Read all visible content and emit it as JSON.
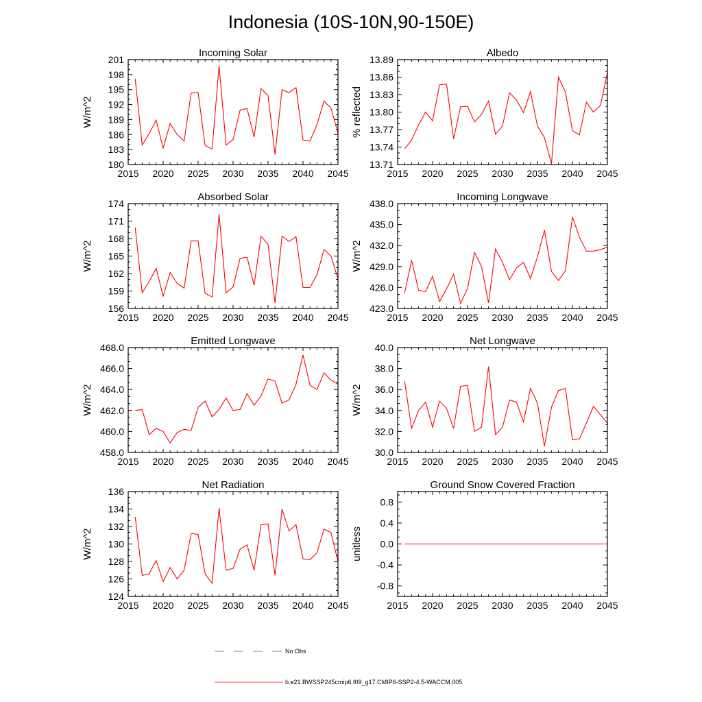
{
  "figure": {
    "title": "Indonesia (10S-10N,90-150E)",
    "colors": {
      "model": "#ff0000",
      "obs": "#4a5bd4",
      "axis": "#000000"
    },
    "legend": {
      "obs_label": "No Obs",
      "model_label": "b.e21.BWSSP245cmip6.f09_g17.CMIP6-SSP2-4.5-WACCM.005"
    }
  },
  "chart_data": [
    {
      "type": "line",
      "title": "Incoming Solar",
      "ylabel": "W/m^2",
      "xlim": [
        2015,
        2045
      ],
      "xticks": [
        2015,
        2020,
        2025,
        2030,
        2035,
        2040,
        2045
      ],
      "ylim": [
        180,
        201
      ],
      "yticks": [
        180,
        183,
        186,
        189,
        192,
        195,
        198,
        201
      ],
      "ytick_labels": [
        "180",
        "183",
        "186",
        "189",
        "192",
        "195",
        "198",
        "201"
      ],
      "x": [
        2016,
        2017,
        2018,
        2019,
        2020,
        2021,
        2022,
        2023,
        2024,
        2025,
        2026,
        2027,
        2028,
        2029,
        2030,
        2031,
        2032,
        2033,
        2034,
        2035,
        2036,
        2037,
        2038,
        2039,
        2040,
        2041,
        2042,
        2043,
        2044,
        2045
      ],
      "series": [
        {
          "name": "b.e21.BWSSP245cmip6.f09_g17.CMIP6-SSP2-4.5-WACCM.005",
          "values": [
            197.2,
            183.9,
            186.2,
            188.9,
            183.3,
            188.2,
            186.0,
            184.7,
            194.3,
            194.4,
            183.8,
            183.1,
            199.8,
            183.9,
            185.0,
            190.9,
            191.2,
            185.5,
            195.2,
            193.8,
            182.0,
            195.0,
            194.4,
            195.4,
            184.9,
            184.7,
            188.0,
            192.7,
            191.3,
            186.3
          ]
        }
      ]
    },
    {
      "type": "line",
      "title": "Albedo",
      "ylabel": "% reflected",
      "xlim": [
        2015,
        2045
      ],
      "xticks": [
        2015,
        2020,
        2025,
        2030,
        2035,
        2040,
        2045
      ],
      "ylim": [
        13.71,
        13.89
      ],
      "yticks": [
        13.71,
        13.74,
        13.77,
        13.8,
        13.83,
        13.86,
        13.89
      ],
      "ytick_labels": [
        "13.71",
        "13.74",
        "13.77",
        "13.80",
        "13.83",
        "13.86",
        "13.89"
      ],
      "x": [
        2016,
        2017,
        2018,
        2019,
        2020,
        2021,
        2022,
        2023,
        2024,
        2025,
        2026,
        2027,
        2028,
        2029,
        2030,
        2031,
        2032,
        2033,
        2034,
        2035,
        2036,
        2037,
        2038,
        2039,
        2040,
        2041,
        2042,
        2043,
        2044,
        2045
      ],
      "series": [
        {
          "name": "b.e21.BWSSP245cmip6.f09_g17.CMIP6-SSP2-4.5-WACCM.005",
          "values": [
            13.737,
            13.752,
            13.778,
            13.8,
            13.785,
            13.847,
            13.848,
            13.754,
            13.809,
            13.81,
            13.783,
            13.796,
            13.819,
            13.762,
            13.776,
            13.833,
            13.821,
            13.799,
            13.835,
            13.776,
            13.756,
            13.711,
            13.86,
            13.834,
            13.768,
            13.761,
            13.817,
            13.8,
            13.811,
            13.868
          ]
        }
      ]
    },
    {
      "type": "line",
      "title": "Absorbed Solar",
      "ylabel": "W/m^2",
      "xlim": [
        2015,
        2045
      ],
      "xticks": [
        2015,
        2020,
        2025,
        2030,
        2035,
        2040,
        2045
      ],
      "ylim": [
        156,
        174
      ],
      "yticks": [
        156,
        159,
        162,
        165,
        168,
        171,
        174
      ],
      "ytick_labels": [
        "156",
        "159",
        "162",
        "165",
        "168",
        "171",
        "174"
      ],
      "x": [
        2016,
        2017,
        2018,
        2019,
        2020,
        2021,
        2022,
        2023,
        2024,
        2025,
        2026,
        2027,
        2028,
        2029,
        2030,
        2031,
        2032,
        2033,
        2034,
        2035,
        2036,
        2037,
        2038,
        2039,
        2040,
        2041,
        2042,
        2043,
        2044,
        2045
      ],
      "series": [
        {
          "name": "b.e21.BWSSP245cmip6.f09_g17.CMIP6-SSP2-4.5-WACCM.005",
          "values": [
            169.9,
            158.7,
            160.6,
            162.9,
            158.1,
            162.2,
            160.3,
            159.5,
            167.6,
            167.6,
            158.6,
            158.0,
            172.2,
            158.7,
            159.7,
            164.6,
            164.8,
            160.0,
            168.4,
            167.0,
            156.9,
            168.4,
            167.5,
            168.3,
            159.6,
            159.6,
            161.8,
            166.1,
            165.0,
            161.1
          ]
        }
      ]
    },
    {
      "type": "line",
      "title": "Incoming Longwave",
      "ylabel": "W/m^2",
      "xlim": [
        2015,
        2045
      ],
      "xticks": [
        2015,
        2020,
        2025,
        2030,
        2035,
        2040,
        2045
      ],
      "ylim": [
        423,
        438
      ],
      "yticks": [
        423,
        426,
        429,
        432,
        435,
        438
      ],
      "ytick_labels": [
        "423.0",
        "426.0",
        "429.0",
        "432.0",
        "435.0",
        "438.0"
      ],
      "x": [
        2016,
        2017,
        2018,
        2019,
        2020,
        2021,
        2022,
        2023,
        2024,
        2025,
        2026,
        2027,
        2028,
        2029,
        2030,
        2031,
        2032,
        2033,
        2034,
        2035,
        2036,
        2037,
        2038,
        2039,
        2040,
        2041,
        2042,
        2043,
        2044,
        2045
      ],
      "series": [
        {
          "name": "b.e21.BWSSP245cmip6.f09_g17.CMIP6-SSP2-4.5-WACCM.005",
          "values": [
            425.2,
            429.9,
            425.6,
            425.4,
            427.6,
            424.0,
            425.8,
            427.9,
            423.7,
            425.9,
            431.0,
            429.0,
            423.8,
            431.5,
            429.6,
            427.1,
            428.8,
            429.6,
            427.3,
            430.4,
            434.2,
            428.3,
            427.0,
            428.4,
            436.1,
            433.2,
            431.2,
            431.2,
            431.4,
            431.8
          ]
        }
      ]
    },
    {
      "type": "line",
      "title": "Emitted Longwave",
      "ylabel": "W/m^2",
      "xlim": [
        2015,
        2045
      ],
      "xticks": [
        2015,
        2020,
        2025,
        2030,
        2035,
        2040,
        2045
      ],
      "ylim": [
        458,
        468
      ],
      "yticks": [
        458,
        460,
        462,
        464,
        466,
        468
      ],
      "ytick_labels": [
        "458.0",
        "460.0",
        "462.0",
        "464.0",
        "466.0",
        "468.0"
      ],
      "x": [
        2016,
        2017,
        2018,
        2019,
        2020,
        2021,
        2022,
        2023,
        2024,
        2025,
        2026,
        2027,
        2028,
        2029,
        2030,
        2031,
        2032,
        2033,
        2034,
        2035,
        2036,
        2037,
        2038,
        2039,
        2040,
        2041,
        2042,
        2043,
        2044,
        2045
      ],
      "series": [
        {
          "name": "b.e21.BWSSP245cmip6.f09_g17.CMIP6-SSP2-4.5-WACCM.005",
          "values": [
            462.0,
            462.1,
            459.7,
            460.3,
            460.0,
            458.9,
            459.9,
            460.2,
            460.1,
            462.3,
            462.9,
            461.4,
            462.1,
            463.2,
            462.0,
            462.1,
            463.6,
            462.5,
            463.4,
            465.0,
            464.8,
            462.7,
            463.0,
            464.5,
            467.3,
            464.4,
            464.0,
            465.6,
            464.9,
            464.5
          ]
        }
      ]
    },
    {
      "type": "line",
      "title": "Net Longwave",
      "ylabel": "W/m^2",
      "xlim": [
        2015,
        2045
      ],
      "xticks": [
        2015,
        2020,
        2025,
        2030,
        2035,
        2040,
        2045
      ],
      "ylim": [
        30,
        40
      ],
      "yticks": [
        30,
        32,
        34,
        36,
        38,
        40
      ],
      "ytick_labels": [
        "30.0",
        "32.0",
        "34.0",
        "36.0",
        "38.0",
        "40.0"
      ],
      "x": [
        2016,
        2017,
        2018,
        2019,
        2020,
        2021,
        2022,
        2023,
        2024,
        2025,
        2026,
        2027,
        2028,
        2029,
        2030,
        2031,
        2032,
        2033,
        2034,
        2035,
        2036,
        2037,
        2038,
        2039,
        2040,
        2041,
        2042,
        2043,
        2044,
        2045
      ],
      "series": [
        {
          "name": "b.e21.BWSSP245cmip6.f09_g17.CMIP6-SSP2-4.5-WACCM.005",
          "values": [
            36.8,
            32.3,
            34.0,
            34.8,
            32.4,
            34.9,
            34.2,
            32.3,
            36.3,
            36.4,
            32.0,
            32.4,
            38.2,
            31.7,
            32.4,
            35.0,
            34.8,
            32.9,
            36.1,
            34.7,
            30.6,
            34.3,
            35.9,
            36.1,
            31.2,
            31.3,
            32.8,
            34.4,
            33.6,
            32.8
          ]
        }
      ]
    },
    {
      "type": "line",
      "title": "Net Radiation",
      "ylabel": "W/m^2",
      "xlim": [
        2015,
        2045
      ],
      "xticks": [
        2015,
        2020,
        2025,
        2030,
        2035,
        2040,
        2045
      ],
      "ylim": [
        124,
        136
      ],
      "yticks": [
        124,
        126,
        128,
        130,
        132,
        134,
        136
      ],
      "ytick_labels": [
        "124",
        "126",
        "128",
        "130",
        "132",
        "134",
        "136"
      ],
      "x": [
        2016,
        2017,
        2018,
        2019,
        2020,
        2021,
        2022,
        2023,
        2024,
        2025,
        2026,
        2027,
        2028,
        2029,
        2030,
        2031,
        2032,
        2033,
        2034,
        2035,
        2036,
        2037,
        2038,
        2039,
        2040,
        2041,
        2042,
        2043,
        2044,
        2045
      ],
      "series": [
        {
          "name": "b.e21.BWSSP245cmip6.f09_g17.CMIP6-SSP2-4.5-WACCM.005",
          "values": [
            133.1,
            126.4,
            126.6,
            128.1,
            125.7,
            127.3,
            126.0,
            127.0,
            131.2,
            131.1,
            126.6,
            125.5,
            134.1,
            127.0,
            127.2,
            129.4,
            129.9,
            127.0,
            132.2,
            132.3,
            126.4,
            134.0,
            131.5,
            132.2,
            128.3,
            128.2,
            129.0,
            131.7,
            131.3,
            128.0
          ]
        }
      ]
    },
    {
      "type": "line",
      "title": "Ground Snow Covered Fraction",
      "ylabel": "unitless",
      "xlim": [
        2015,
        2045
      ],
      "xticks": [
        2015,
        2020,
        2025,
        2030,
        2035,
        2040,
        2045
      ],
      "ylim": [
        -1,
        1
      ],
      "yticks": [
        -0.8,
        -0.4,
        0.0,
        0.4,
        0.8
      ],
      "ytick_labels": [
        "-0.8",
        "-0.4",
        "0.0",
        "0.4",
        "0.8"
      ],
      "x": [
        2016,
        2017,
        2018,
        2019,
        2020,
        2021,
        2022,
        2023,
        2024,
        2025,
        2026,
        2027,
        2028,
        2029,
        2030,
        2031,
        2032,
        2033,
        2034,
        2035,
        2036,
        2037,
        2038,
        2039,
        2040,
        2041,
        2042,
        2043,
        2044,
        2045
      ],
      "series": [
        {
          "name": "b.e21.BWSSP245cmip6.f09_g17.CMIP6-SSP2-4.5-WACCM.005",
          "values": [
            0,
            0,
            0,
            0,
            0,
            0,
            0,
            0,
            0,
            0,
            0,
            0,
            0,
            0,
            0,
            0,
            0,
            0,
            0,
            0,
            0,
            0,
            0,
            0,
            0,
            0,
            0,
            0,
            0,
            0
          ]
        }
      ]
    }
  ]
}
